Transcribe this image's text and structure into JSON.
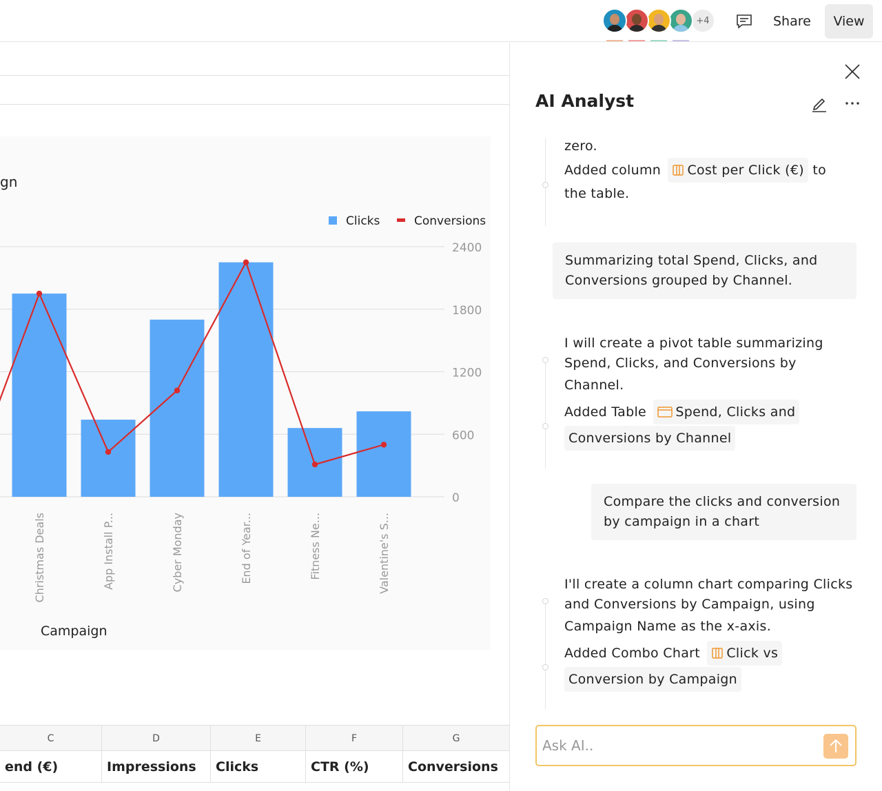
{
  "topbar": {
    "avatars": [
      {
        "bg": "#1f8fbf",
        "skin": "#c68e6a",
        "shirt": "#222222",
        "underline": "#f4b89a"
      },
      {
        "bg": "#d94c4c",
        "skin": "#7a4a2e",
        "shirt": "#2a2a2a",
        "underline": "#f4a0a0"
      },
      {
        "bg": "#f2b623",
        "skin": "#d9a07a",
        "shirt": "#333333",
        "underline": "#9fdcc4"
      },
      {
        "bg": "#3aa58a",
        "skin": "#e0b89c",
        "shirt": "#8fc7e8",
        "underline": "#c8c0e8"
      }
    ],
    "more_count": "+4",
    "share_label": "Share",
    "view_label": "View"
  },
  "sheet": {
    "title_fragment": "gn",
    "columns": [
      {
        "letter": "C",
        "header": "end (€)"
      },
      {
        "letter": "D",
        "header": "Impressions"
      },
      {
        "letter": "E",
        "header": "Clicks"
      },
      {
        "letter": "F",
        "header": "CTR (%)"
      },
      {
        "letter": "G",
        "header": "Conversions"
      }
    ]
  },
  "chart_data": {
    "type": "bar",
    "categories": [
      "Christmas Deals",
      "App Install P...",
      "Cyber Monday",
      "End of Year...",
      "Fitness Ne...",
      "Valentine's S..."
    ],
    "series": [
      {
        "name": "Clicks",
        "kind": "bar",
        "color": "#5ca8f8",
        "values": [
          1950,
          740,
          1700,
          2250,
          660,
          820
        ]
      },
      {
        "name": "Conversions",
        "kind": "line",
        "color": "#d92b2b",
        "values": [
          1950,
          430,
          1020,
          2250,
          310,
          500
        ],
        "leading_value": 880
      }
    ],
    "xlabel": "Campaign",
    "ylabel": "",
    "ylim": [
      0,
      2400
    ],
    "yticks": [
      0,
      600,
      1200,
      1800,
      2400
    ],
    "ytick_labels": [
      "0",
      "600",
      "1200",
      "1800",
      "2400"
    ],
    "grid": true,
    "legend": "top-right",
    "clipped_left": true
  },
  "panel": {
    "title": "AI Analyst",
    "messages": {
      "m1_line1": "zero.",
      "m1_added_prefix": "Added column",
      "m1_chip": "Cost per Click (€)",
      "m1_suffix": "to",
      "m1_line3": "the table.",
      "u1_line1": "Summarizing total Spend, Clicks, and",
      "u1_line2": "Conversions grouped by Channel.",
      "m2_line1": "I will create a pivot table summarizing",
      "m2_line2": "Spend, Clicks, and Conversions by",
      "m2_line3": "Channel.",
      "m2_added_prefix": "Added Table",
      "m2_chip_line1": "Spend, Clicks and",
      "m2_chip_line2": "Conversions by Channel",
      "u2_line1": "Compare the clicks and conversion",
      "u2_line2": "by campaign in a chart",
      "m3_line1": "I'll create a column chart comparing Clicks",
      "m3_line2": "and Conversions by Campaign, using",
      "m3_line3": "Campaign Name as the x-axis.",
      "m3_added_prefix": "Added Combo Chart",
      "m3_chip_line1": "Click vs",
      "m3_chip_line2": "Conversion by Campaign"
    },
    "ask_placeholder": "Ask AI.."
  }
}
